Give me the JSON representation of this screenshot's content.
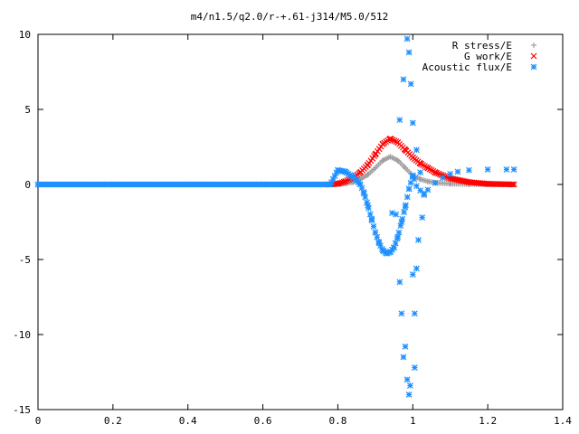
{
  "chart_data": {
    "type": "scatter",
    "title": "m4/n1.5/q2.0/r-+.61-j314/M5.0/512",
    "xlabel": "",
    "ylabel": "",
    "xlim": [
      0,
      1.4
    ],
    "ylim": [
      -15,
      10
    ],
    "xticks": [
      "0",
      "0.2",
      "0.4",
      "0.6",
      "0.8",
      "1",
      "1.2",
      "1.4"
    ],
    "yticks": [
      "10",
      "5",
      "0",
      "-5",
      "-10",
      "-15"
    ],
    "grid": false,
    "legend_position": "top-right",
    "series": [
      {
        "name": "R stress/E",
        "marker": "+",
        "color": "#a0a0a0",
        "points": [
          [
            0.0,
            0
          ],
          [
            0.2,
            0
          ],
          [
            0.4,
            0
          ],
          [
            0.6,
            0
          ],
          [
            0.78,
            0
          ],
          [
            0.8,
            0.02
          ],
          [
            0.82,
            0.06
          ],
          [
            0.84,
            0.15
          ],
          [
            0.86,
            0.35
          ],
          [
            0.88,
            0.65
          ],
          [
            0.9,
            1.1
          ],
          [
            0.92,
            1.6
          ],
          [
            0.94,
            1.85
          ],
          [
            0.96,
            1.6
          ],
          [
            0.98,
            1.1
          ],
          [
            1.0,
            0.6
          ],
          [
            1.02,
            0.35
          ],
          [
            1.04,
            0.2
          ],
          [
            1.06,
            0.12
          ],
          [
            1.1,
            0.05
          ],
          [
            1.15,
            0.02
          ],
          [
            1.2,
            0.01
          ],
          [
            1.27,
            0
          ]
        ]
      },
      {
        "name": "G work/E",
        "marker": "x",
        "color": "#ff0000",
        "points": [
          [
            0.78,
            0
          ],
          [
            0.8,
            0.05
          ],
          [
            0.82,
            0.2
          ],
          [
            0.84,
            0.45
          ],
          [
            0.86,
            0.8
          ],
          [
            0.88,
            1.3
          ],
          [
            0.9,
            2.0
          ],
          [
            0.92,
            2.7
          ],
          [
            0.94,
            3.05
          ],
          [
            0.96,
            2.8
          ],
          [
            0.98,
            2.3
          ],
          [
            1.0,
            1.8
          ],
          [
            1.02,
            1.4
          ],
          [
            1.04,
            1.1
          ],
          [
            1.06,
            0.8
          ],
          [
            1.1,
            0.4
          ],
          [
            1.15,
            0.15
          ],
          [
            1.2,
            0.04
          ],
          [
            1.27,
            0
          ]
        ]
      },
      {
        "name": "Acoustic flux/E",
        "marker": "*",
        "color": "#1e90ff",
        "points": [
          [
            0.0,
            0
          ],
          [
            0.2,
            0
          ],
          [
            0.4,
            0
          ],
          [
            0.6,
            0
          ],
          [
            0.78,
            0
          ],
          [
            0.8,
            0.95
          ],
          [
            0.82,
            0.85
          ],
          [
            0.84,
            0.5
          ],
          [
            0.86,
            0
          ],
          [
            0.87,
            -0.6
          ],
          [
            0.88,
            -1.4
          ],
          [
            0.89,
            -2.3
          ],
          [
            0.9,
            -3.2
          ],
          [
            0.91,
            -3.9
          ],
          [
            0.92,
            -4.4
          ],
          [
            0.93,
            -4.6
          ],
          [
            0.94,
            -4.5
          ],
          [
            0.95,
            -4.2
          ],
          [
            0.96,
            -3.5
          ],
          [
            0.97,
            -2.5
          ],
          [
            0.98,
            -1.5
          ],
          [
            0.99,
            -0.3
          ],
          [
            1.0,
            0.6
          ],
          [
            1.01,
            -0.1
          ],
          [
            1.02,
            -0.4
          ],
          [
            1.03,
            -0.6
          ],
          [
            1.04,
            -0.35
          ],
          [
            1.06,
            0.1
          ],
          [
            1.08,
            0.45
          ],
          [
            1.1,
            0.7
          ],
          [
            1.12,
            0.85
          ],
          [
            1.15,
            0.95
          ],
          [
            1.2,
            1.0
          ],
          [
            1.25,
            1.0
          ],
          [
            1.27,
            1.0
          ],
          [
            0.955,
            -2.0
          ],
          [
            0.965,
            -6.5
          ],
          [
            0.97,
            -8.6
          ],
          [
            0.965,
            4.3
          ],
          [
            0.975,
            7.0
          ],
          [
            0.985,
            9.7
          ],
          [
            0.99,
            8.8
          ],
          [
            0.995,
            6.7
          ],
          [
            0.98,
            -10.8
          ],
          [
            0.985,
            -13.0
          ],
          [
            0.99,
            -14.0
          ],
          [
            0.993,
            -13.4
          ],
          [
            1.0,
            4.1
          ],
          [
            1.005,
            -8.6
          ],
          [
            1.01,
            -5.6
          ],
          [
            1.01,
            2.3
          ],
          [
            1.015,
            -3.7
          ],
          [
            1.02,
            0.8
          ],
          [
            1.025,
            -2.2
          ],
          [
            1.03,
            -0.7
          ],
          [
            1.0,
            -6.0
          ],
          [
            0.945,
            -1.9
          ],
          [
            0.975,
            -11.5
          ],
          [
            1.005,
            -12.2
          ]
        ]
      }
    ]
  }
}
